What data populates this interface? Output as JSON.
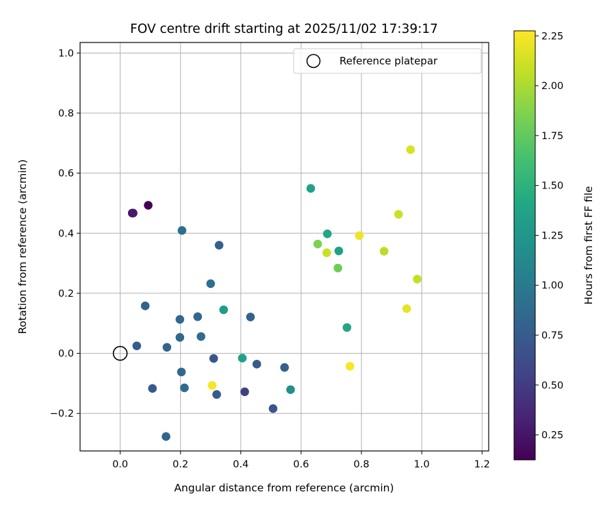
{
  "chart_data": {
    "type": "scatter",
    "title": "FOV centre drift starting at 2025/11/02 17:39:17",
    "xlabel": "Angular distance from reference (arcmin)",
    "ylabel": "Rotation from reference (arcmin)",
    "xlim": [
      -0.133,
      1.222
    ],
    "ylim": [
      -0.325,
      1.035
    ],
    "xticks": [
      0.0,
      0.2,
      0.4,
      0.6,
      0.8,
      1.0,
      1.2
    ],
    "xtick_labels": [
      "0.0",
      "0.2",
      "0.4",
      "0.6",
      "0.8",
      "1.0",
      "1.2"
    ],
    "yticks": [
      -0.2,
      0.0,
      0.2,
      0.4,
      0.6,
      0.8,
      1.0
    ],
    "ytick_labels": [
      "−0.2",
      "0.0",
      "0.2",
      "0.4",
      "0.6",
      "0.8",
      "1.0"
    ],
    "grid": true,
    "legend": {
      "position": "top-right",
      "entries": [
        {
          "label": "Reference platepar",
          "marker": "open-circle"
        }
      ]
    },
    "reference_point": {
      "x": 0.0,
      "y": 0.0
    },
    "colorbar": {
      "label": "Hours from first FF file",
      "colormap": "viridis",
      "range": [
        0.125,
        2.275
      ],
      "ticks": [
        0.25,
        0.5,
        0.75,
        1.0,
        1.25,
        1.5,
        1.75,
        2.0,
        2.25
      ],
      "tick_labels": [
        "0.25",
        "0.50",
        "0.75",
        "1.00",
        "1.25",
        "1.50",
        "1.75",
        "2.00",
        "2.25"
      ]
    },
    "points": [
      {
        "x": 0.04,
        "y": 0.467,
        "c": 0.2
      },
      {
        "x": 0.093,
        "y": 0.493,
        "c": 0.13
      },
      {
        "x": 0.043,
        "y": 0.467,
        "c": 0.28
      },
      {
        "x": 0.055,
        "y": 0.025,
        "c": 0.75
      },
      {
        "x": 0.083,
        "y": 0.158,
        "c": 0.8
      },
      {
        "x": 0.107,
        "y": -0.117,
        "c": 0.72
      },
      {
        "x": 0.152,
        "y": -0.277,
        "c": 0.82
      },
      {
        "x": 0.155,
        "y": 0.02,
        "c": 0.82
      },
      {
        "x": 0.198,
        "y": 0.113,
        "c": 0.85
      },
      {
        "x": 0.198,
        "y": 0.053,
        "c": 0.85
      },
      {
        "x": 0.203,
        "y": -0.062,
        "c": 0.85
      },
      {
        "x": 0.205,
        "y": 0.409,
        "c": 0.92
      },
      {
        "x": 0.213,
        "y": -0.115,
        "c": 0.87
      },
      {
        "x": 0.257,
        "y": 0.122,
        "c": 0.85
      },
      {
        "x": 0.268,
        "y": 0.056,
        "c": 0.88
      },
      {
        "x": 0.3,
        "y": 0.232,
        "c": 0.9
      },
      {
        "x": 0.31,
        "y": -0.017,
        "c": 0.7
      },
      {
        "x": 0.32,
        "y": -0.137,
        "c": 0.75
      },
      {
        "x": 0.328,
        "y": 0.36,
        "c": 0.78
      },
      {
        "x": 0.343,
        "y": 0.145,
        "c": 1.3
      },
      {
        "x": 0.413,
        "y": -0.128,
        "c": 0.52
      },
      {
        "x": 0.432,
        "y": 0.121,
        "c": 0.8
      },
      {
        "x": 0.453,
        "y": -0.036,
        "c": 0.72
      },
      {
        "x": 0.507,
        "y": -0.184,
        "c": 0.7
      },
      {
        "x": 0.545,
        "y": -0.047,
        "c": 0.78
      },
      {
        "x": 0.565,
        "y": -0.121,
        "c": 1.2
      },
      {
        "x": 0.405,
        "y": -0.016,
        "c": 1.35
      },
      {
        "x": 0.305,
        "y": -0.107,
        "c": 2.25
      },
      {
        "x": 0.632,
        "y": 0.549,
        "c": 1.35
      },
      {
        "x": 0.655,
        "y": 0.364,
        "c": 1.85
      },
      {
        "x": 0.685,
        "y": 0.335,
        "c": 2.1
      },
      {
        "x": 0.687,
        "y": 0.398,
        "c": 1.4
      },
      {
        "x": 0.722,
        "y": 0.284,
        "c": 1.8
      },
      {
        "x": 0.725,
        "y": 0.341,
        "c": 1.35
      },
      {
        "x": 0.752,
        "y": 0.086,
        "c": 1.4
      },
      {
        "x": 0.762,
        "y": -0.043,
        "c": 2.25
      },
      {
        "x": 0.793,
        "y": 0.392,
        "c": 2.22
      },
      {
        "x": 0.875,
        "y": 0.34,
        "c": 2.05
      },
      {
        "x": 0.923,
        "y": 0.463,
        "c": 2.1
      },
      {
        "x": 0.95,
        "y": 0.149,
        "c": 2.2
      },
      {
        "x": 0.963,
        "y": 0.678,
        "c": 2.15
      },
      {
        "x": 0.985,
        "y": 0.247,
        "c": 2.08
      }
    ]
  }
}
